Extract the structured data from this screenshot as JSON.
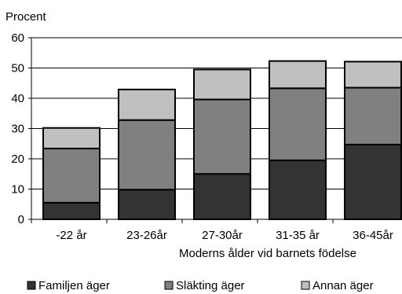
{
  "chart_data": {
    "type": "bar",
    "stacked": true,
    "ylabel": "Procent",
    "xlabel": "Moderns ålder vid barnets födelse",
    "categories": [
      "-22 år",
      "23-26år",
      "27-30år",
      "31-35 år",
      "36-45år"
    ],
    "ylim": [
      0,
      60
    ],
    "yticks": [
      0,
      10,
      20,
      30,
      40,
      50,
      60
    ],
    "grid": true,
    "legend_position": "bottom",
    "series": [
      {
        "name": "Familjen äger",
        "color": "#333333",
        "values": [
          5.5,
          9.8,
          15.0,
          19.5,
          24.7
        ]
      },
      {
        "name": "Släkting äger",
        "color": "#808080",
        "values": [
          17.9,
          23.0,
          24.6,
          23.8,
          18.8
        ]
      },
      {
        "name": "Annan äger",
        "color": "#c0c0c0",
        "values": [
          6.8,
          10.1,
          9.9,
          9.0,
          8.6
        ]
      }
    ]
  }
}
